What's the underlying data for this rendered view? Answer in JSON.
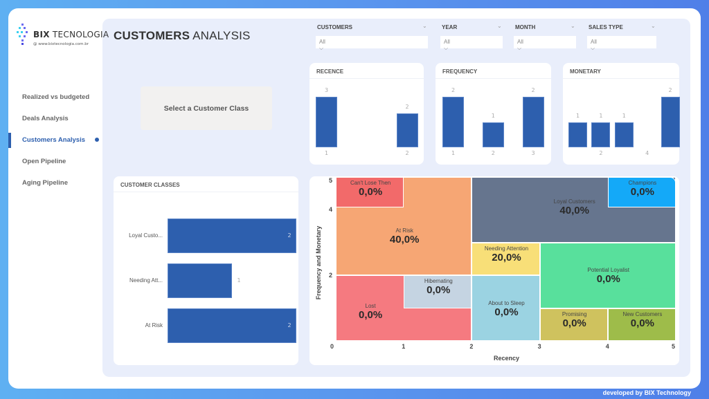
{
  "brand": {
    "name_bold": "BIX",
    "name_rest": " TECNOLOGIA",
    "url": "@ www.bixtecnologia.com.br"
  },
  "nav": [
    {
      "label": "Realized vs budgeted"
    },
    {
      "label": "Deals Analysis"
    },
    {
      "label": "Customers Analysis",
      "active": true
    },
    {
      "label": "Open Pipeline"
    },
    {
      "label": "Aging Pipeline"
    }
  ],
  "page": {
    "title_bold": "CUSTOMERS",
    "title_rest": " ANALYSIS"
  },
  "filters": [
    {
      "label": "CUSTOMERS",
      "value": "All"
    },
    {
      "label": "YEAR",
      "value": "All"
    },
    {
      "label": "MONTH",
      "value": "All"
    },
    {
      "label": "SALES TYPE",
      "value": "All"
    }
  ],
  "select_class": "Select a Customer Class",
  "colors": {
    "bar": "#2d5fae",
    "active": "#2d5fae"
  },
  "chart_data": [
    {
      "type": "bar",
      "title": "RECENCE",
      "x": [
        1,
        2
      ],
      "values": [
        3,
        2
      ],
      "xticks": [
        1,
        2
      ]
    },
    {
      "type": "bar",
      "title": "FREQUENCY",
      "x": [
        1,
        2,
        3
      ],
      "values": [
        2,
        1,
        2
      ],
      "xticks": [
        1,
        2,
        3
      ]
    },
    {
      "type": "bar",
      "title": "MONETARY",
      "x": [
        1,
        2,
        3,
        5
      ],
      "values": [
        1,
        1,
        1,
        2
      ],
      "xticks": [
        2,
        4
      ]
    },
    {
      "type": "bar",
      "orientation": "horizontal",
      "title": "CUSTOMER CLASSES",
      "categories": [
        "Loyal Custo...",
        "Needing Att...",
        "At Risk"
      ],
      "values": [
        2,
        1,
        2
      ]
    },
    {
      "type": "heatmap",
      "xlabel": "Recency",
      "ylabel": "Frequency and Monetary",
      "xticks": [
        0,
        1,
        2,
        3,
        4,
        5
      ],
      "yticks": [
        2,
        4,
        5
      ],
      "xlim": [
        0,
        5
      ],
      "ylim": [
        0,
        5
      ],
      "segments": [
        {
          "name": "At Risk",
          "value": "40,0%",
          "color": "#f6a674"
        },
        {
          "name": "Can't Lose Then",
          "value": "0,0%",
          "color": "#f26a6a"
        },
        {
          "name": "Loyal Customers",
          "value": "40,0%",
          "color": "#66758e"
        },
        {
          "name": "Champions",
          "value": "0,0%",
          "color": "#14a9f8"
        },
        {
          "name": "Needing Attention",
          "value": "20,0%",
          "color": "#f8df78"
        },
        {
          "name": "Potential Loyalist",
          "value": "0,0%",
          "color": "#58e09c"
        },
        {
          "name": "Lost",
          "value": "0,0%",
          "color": "#f57a80"
        },
        {
          "name": "Hibernating",
          "value": "0,0%",
          "color": "#c5d4e2"
        },
        {
          "name": "About to Sleep",
          "value": "0,0%",
          "color": "#9bd3e2"
        },
        {
          "name": "Promising",
          "value": "0,0%",
          "color": "#cfc25e"
        },
        {
          "name": "New Customers",
          "value": "0,0%",
          "color": "#9ebc4a"
        }
      ]
    }
  ],
  "footer": "developed by BIX Technology"
}
